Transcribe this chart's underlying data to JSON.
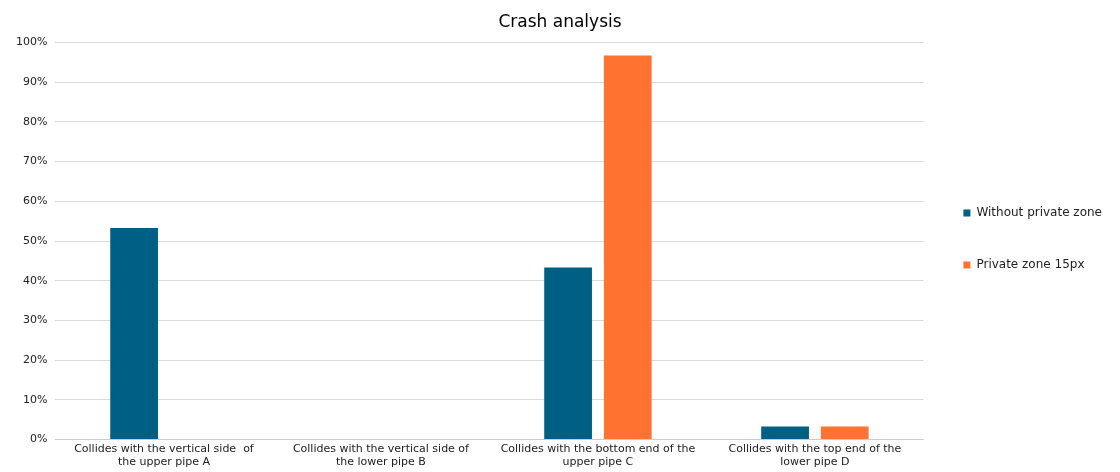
{
  "chart_data": {
    "type": "bar",
    "title": "Crash analysis",
    "categories": [
      "Collides with the vertical side  of the upper pipe A",
      "Collides with the vertical side of the lower pipe B",
      "Collides with the bottom end of the upper pipe C",
      "Collides with the top end of the lower pipe D"
    ],
    "series": [
      {
        "name": "Without private zone",
        "color": "#005f84",
        "values": [
          53.3,
          0,
          43.3,
          3.3
        ]
      },
      {
        "name": "Private zone 15px",
        "color": "#ff7230",
        "values": [
          0,
          0,
          96.7,
          3.3
        ]
      }
    ],
    "ylim": [
      0,
      100
    ],
    "yticks": [
      {
        "value": 0,
        "label": "0%"
      },
      {
        "value": 10,
        "label": "10%"
      },
      {
        "value": 20,
        "label": "20%"
      },
      {
        "value": 30,
        "label": "30%"
      },
      {
        "value": 40,
        "label": "40%"
      },
      {
        "value": 50,
        "label": "50%"
      },
      {
        "value": 60,
        "label": "60%"
      },
      {
        "value": 70,
        "label": "70%"
      },
      {
        "value": 80,
        "label": "80%"
      },
      {
        "value": 90,
        "label": "90%"
      },
      {
        "value": 100,
        "label": "100%"
      }
    ],
    "grid": "y",
    "legend": "right"
  }
}
